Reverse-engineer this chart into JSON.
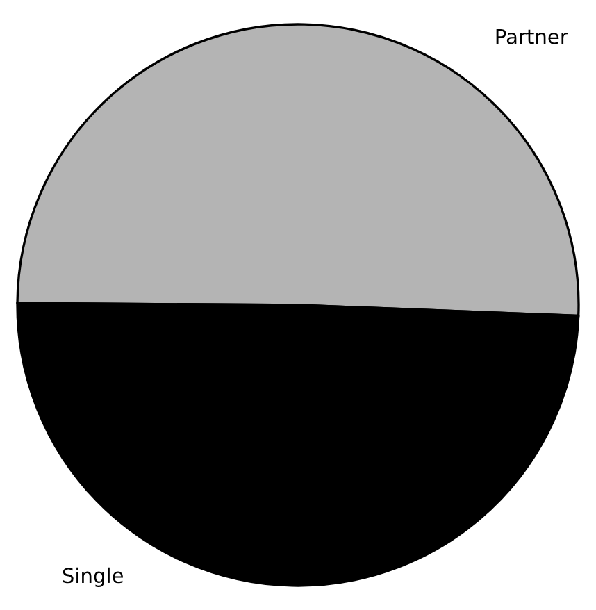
{
  "chart_data": {
    "type": "pie",
    "categories": [
      "Partner",
      "Single"
    ],
    "values": [
      50.5,
      49.5
    ],
    "colors": [
      "#b4b4b4",
      "#000000"
    ]
  }
}
